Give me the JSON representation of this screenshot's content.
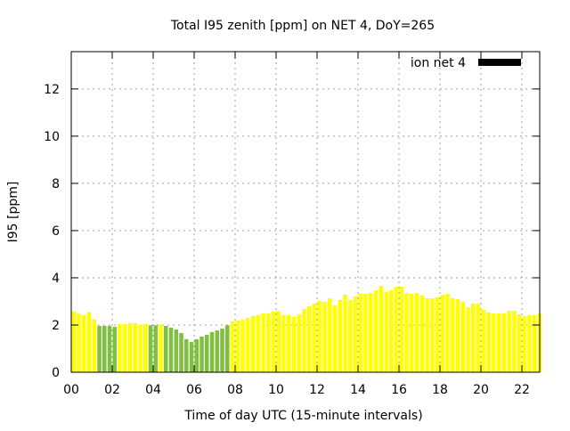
{
  "chart_data": {
    "type": "bar",
    "title": "Total I95 zenith [ppm] on NET 4, DoY=265",
    "xlabel": "Time of day UTC (15-minute intervals)",
    "ylabel": "I95 [ppm]",
    "xlim": [
      0,
      22.87
    ],
    "ylim": [
      0,
      13.58
    ],
    "x_ticks": [
      "00",
      "02",
      "04",
      "06",
      "08",
      "10",
      "12",
      "14",
      "16",
      "18",
      "20",
      "22"
    ],
    "x_tick_values": [
      0,
      2,
      4,
      6,
      8,
      10,
      12,
      14,
      16,
      18,
      20,
      22
    ],
    "y_ticks": [
      "0",
      "2",
      "4",
      "6",
      "8",
      "10",
      "12"
    ],
    "y_tick_values": [
      0,
      2,
      4,
      6,
      8,
      10,
      12
    ],
    "grid": true,
    "legend": {
      "label": "ion net 4",
      "position": "top-right",
      "color": "#000000"
    },
    "colors": {
      "above_threshold": "#ffff00",
      "below_threshold": "#80c040"
    },
    "bar_interval_hours": 0.25,
    "values": [
      2.57,
      2.47,
      2.42,
      2.54,
      2.23,
      1.96,
      1.96,
      1.96,
      1.92,
      2.04,
      2.04,
      2.08,
      2.08,
      2.02,
      2.04,
      1.99,
      1.99,
      2.02,
      1.96,
      1.89,
      1.81,
      1.66,
      1.4,
      1.28,
      1.4,
      1.51,
      1.58,
      1.7,
      1.77,
      1.85,
      1.99,
      2.15,
      2.19,
      2.23,
      2.3,
      2.38,
      2.42,
      2.49,
      2.49,
      2.57,
      2.6,
      2.42,
      2.42,
      2.34,
      2.45,
      2.68,
      2.79,
      2.91,
      3.02,
      2.98,
      3.13,
      2.83,
      3.06,
      3.28,
      3.06,
      3.21,
      3.32,
      3.32,
      3.36,
      3.47,
      3.66,
      3.4,
      3.47,
      3.62,
      3.62,
      3.36,
      3.32,
      3.36,
      3.25,
      3.13,
      3.13,
      3.17,
      3.28,
      3.32,
      3.13,
      3.09,
      2.98,
      2.75,
      2.91,
      2.91,
      2.64,
      2.53,
      2.49,
      2.49,
      2.49,
      2.6,
      2.6,
      2.45,
      2.38,
      2.42,
      2.42,
      2.49
    ],
    "below_threshold_flags": [
      0,
      0,
      0,
      0,
      0,
      1,
      1,
      1,
      1,
      0,
      0,
      0,
      0,
      0,
      0,
      1,
      1,
      0,
      1,
      1,
      1,
      1,
      1,
      1,
      1,
      1,
      1,
      1,
      1,
      1,
      1,
      0,
      0,
      0,
      0,
      0,
      0,
      0,
      0,
      0,
      0,
      0,
      0,
      0,
      0,
      0,
      0,
      0,
      0,
      0,
      0,
      0,
      0,
      0,
      0,
      0,
      0,
      0,
      0,
      0,
      0,
      0,
      0,
      0,
      0,
      0,
      0,
      0,
      0,
      0,
      0,
      0,
      0,
      0,
      0,
      0,
      0,
      0,
      0,
      0,
      0,
      0,
      0,
      0,
      0,
      0,
      0,
      0,
      0,
      0,
      0,
      0
    ]
  }
}
